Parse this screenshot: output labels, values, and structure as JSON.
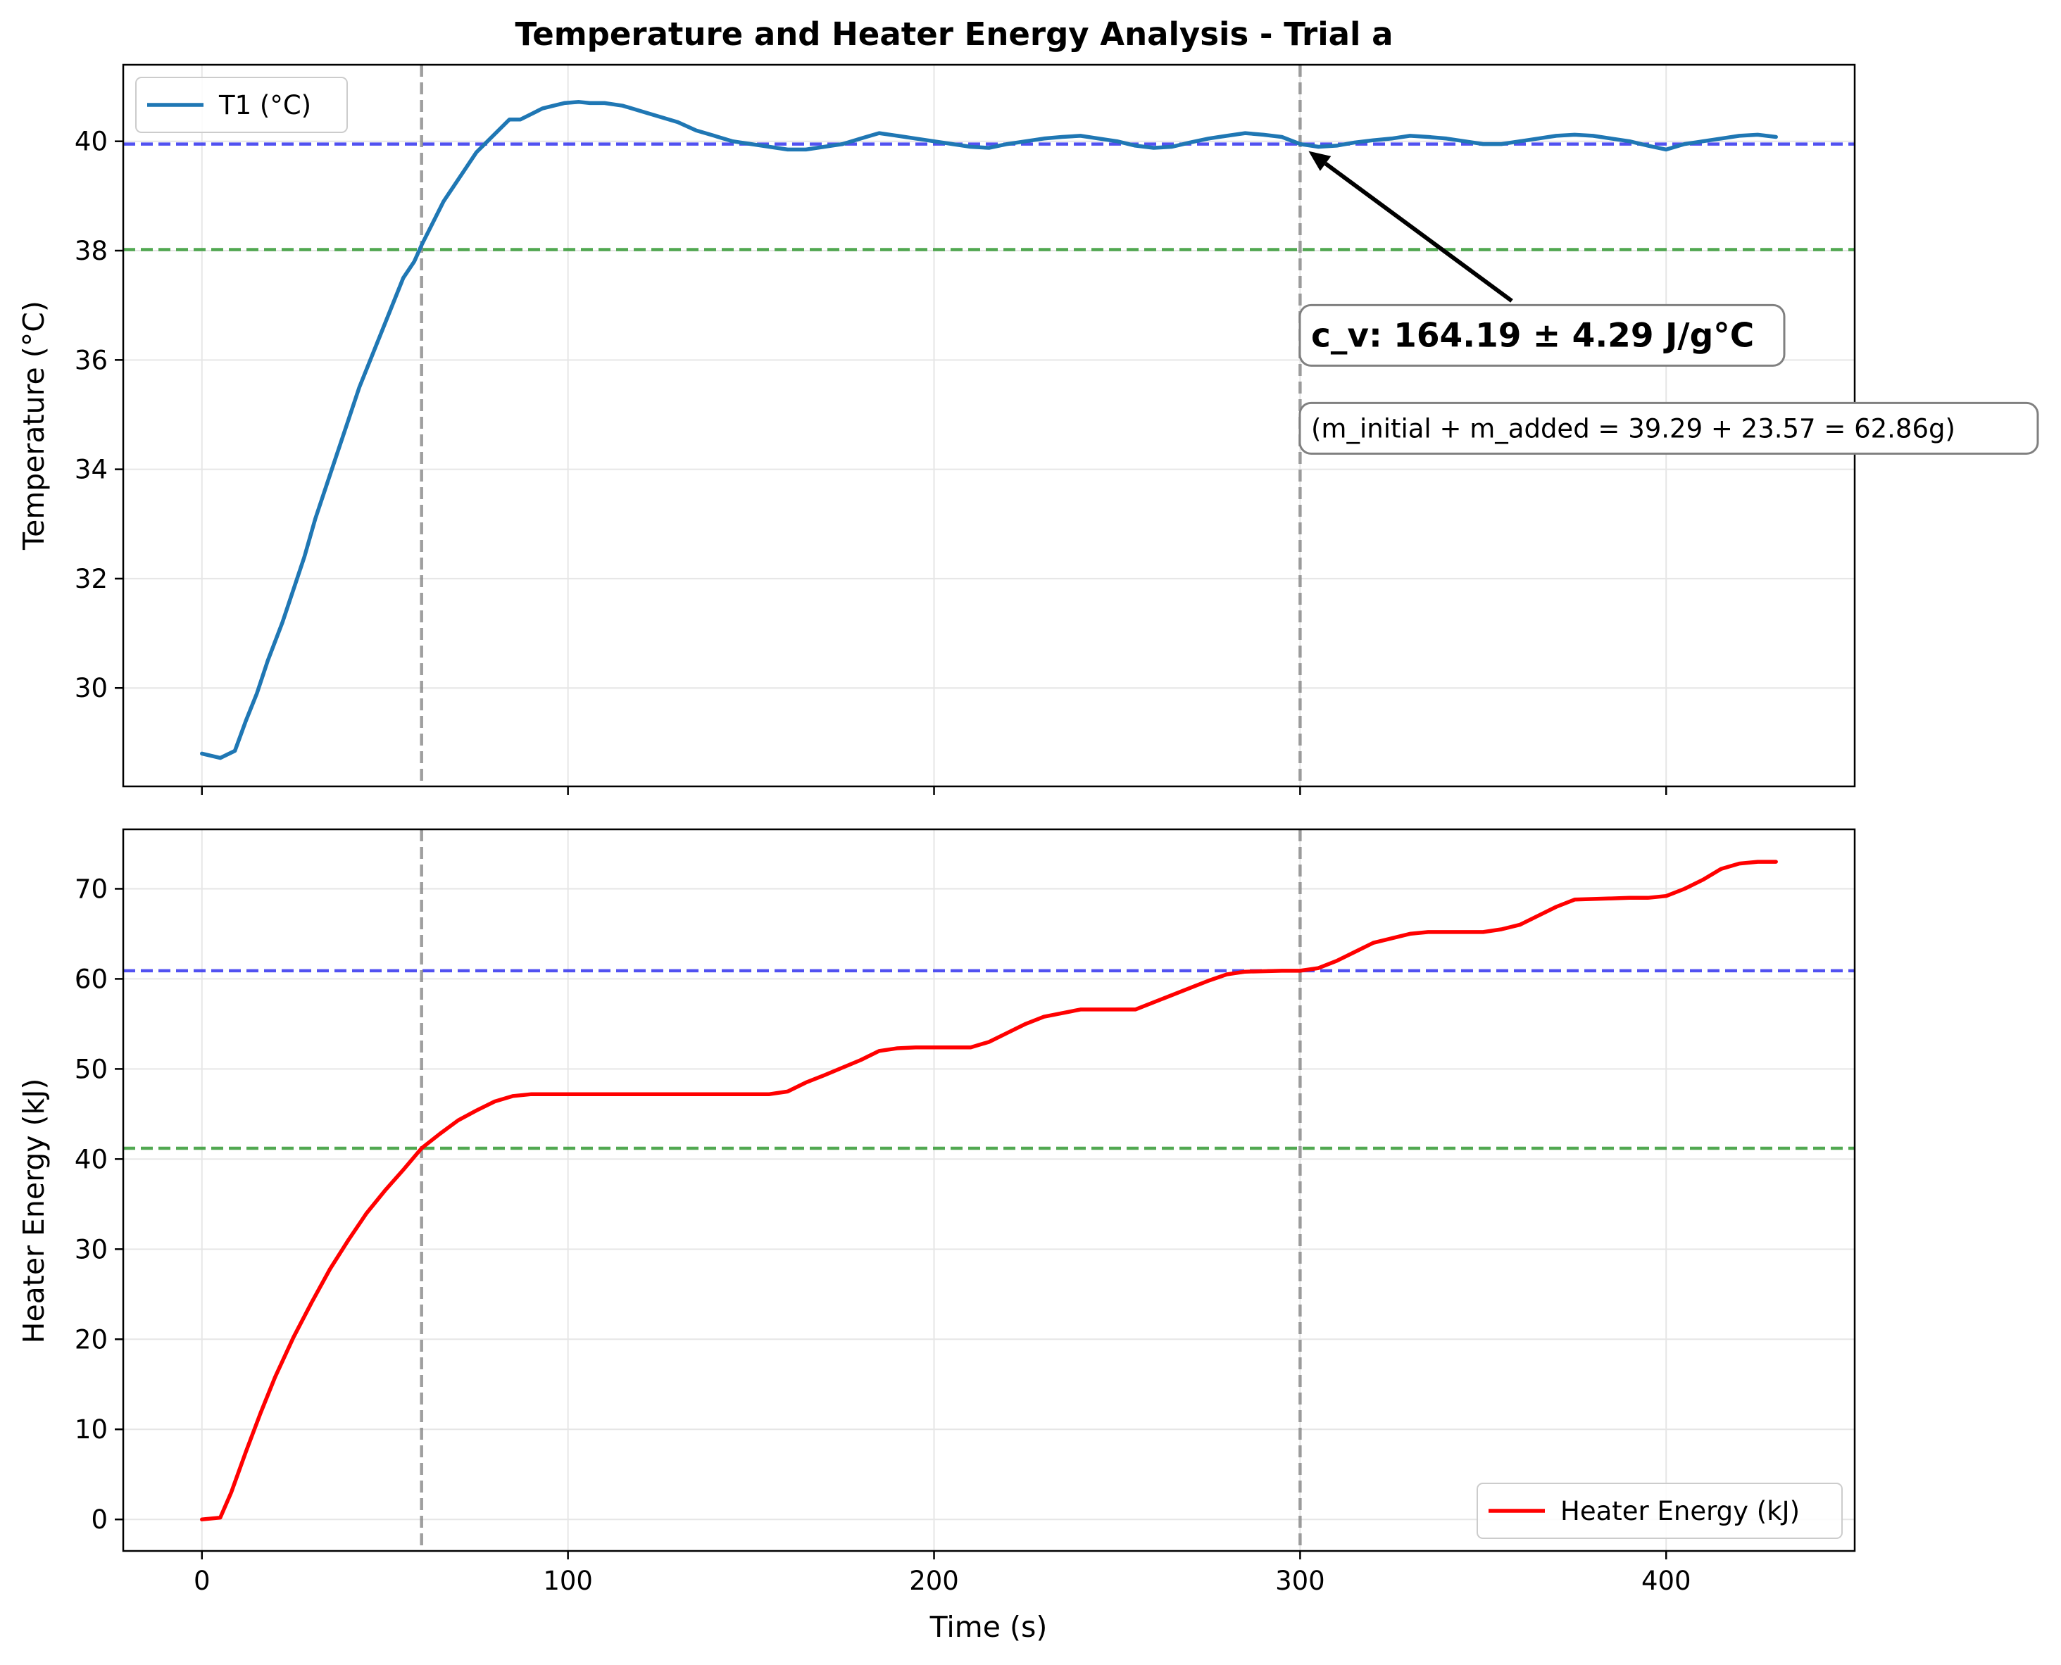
{
  "chart_data": {
    "type": "line",
    "title": "Temperature and Heater Energy Analysis - Trial a",
    "xlabel": "Time (s)",
    "xlim": [
      -21.5,
      451.5
    ],
    "x_ticks": [
      0,
      100,
      200,
      300,
      400
    ],
    "grid": true,
    "vertical_lines": [
      {
        "x": 60,
        "color": "#7f7f7f",
        "style": "dashed"
      },
      {
        "x": 300,
        "color": "#7f7f7f",
        "style": "dashed"
      }
    ],
    "panels": [
      {
        "ylabel": "Temperature (°C)",
        "ylim": [
          28.2,
          41.4
        ],
        "y_ticks": [
          30,
          32,
          34,
          36,
          38,
          40
        ],
        "legend": {
          "placement": "upper-left"
        },
        "horizontal_lines": [
          {
            "y": 39.95,
            "color": "#3333ee",
            "style": "dashed"
          },
          {
            "y": 38.02,
            "color": "#339933",
            "style": "dashed"
          }
        ],
        "series": [
          {
            "name": "T1 (°C)",
            "color": "#1f77b4",
            "x": [
              0,
              5,
              9,
              12,
              15,
              18,
              22,
              25,
              28,
              31,
              34,
              37,
              40,
              43,
              46,
              49,
              52,
              55,
              58,
              60,
              63,
              66,
              69,
              72,
              75,
              78,
              81,
              84,
              87,
              90,
              93,
              96,
              99,
              103,
              106,
              110,
              115,
              120,
              125,
              130,
              135,
              140,
              145,
              150,
              155,
              160,
              165,
              170,
              175,
              180,
              185,
              190,
              195,
              200,
              205,
              210,
              215,
              220,
              225,
              230,
              235,
              240,
              245,
              250,
              255,
              260,
              265,
              270,
              275,
              280,
              285,
              290,
              295,
              300,
              305,
              310,
              315,
              320,
              325,
              330,
              335,
              340,
              345,
              350,
              355,
              360,
              365,
              370,
              375,
              380,
              385,
              390,
              395,
              400,
              405,
              410,
              415,
              420,
              425,
              430
            ],
            "y": [
              28.8,
              28.72,
              28.85,
              29.4,
              29.9,
              30.5,
              31.2,
              31.8,
              32.4,
              33.1,
              33.7,
              34.3,
              34.9,
              35.5,
              36.0,
              36.5,
              37.0,
              37.5,
              37.8,
              38.1,
              38.5,
              38.9,
              39.2,
              39.5,
              39.8,
              40.0,
              40.2,
              40.4,
              40.4,
              40.5,
              40.6,
              40.65,
              40.7,
              40.72,
              40.7,
              40.7,
              40.65,
              40.55,
              40.45,
              40.35,
              40.2,
              40.1,
              40.0,
              39.95,
              39.9,
              39.85,
              39.85,
              39.9,
              39.95,
              40.05,
              40.15,
              40.1,
              40.05,
              40.0,
              39.95,
              39.9,
              39.88,
              39.95,
              40.0,
              40.05,
              40.08,
              40.1,
              40.05,
              40.0,
              39.92,
              39.88,
              39.9,
              39.98,
              40.05,
              40.1,
              40.15,
              40.12,
              40.08,
              39.95,
              39.9,
              39.92,
              39.98,
              40.02,
              40.05,
              40.1,
              40.08,
              40.05,
              40.0,
              39.95,
              39.95,
              40.0,
              40.05,
              40.1,
              40.12,
              40.1,
              40.05,
              40.0,
              39.92,
              39.85,
              39.95,
              40.0,
              40.05,
              40.1,
              40.12,
              40.08
            ]
          }
        ],
        "annotations": [
          {
            "text": "c_v: 164.19 ± 4.29 J/g°C",
            "arrow_to": [
              300,
              39.95
            ],
            "text_pos": [
              303,
              36.45
            ],
            "style": "bold"
          },
          {
            "text": "(m_initial + m_added = 39.29 + 23.57 = 62.86g)",
            "text_pos": [
              303,
              34.75
            ],
            "style": "normal"
          }
        ]
      },
      {
        "ylabel": "Heater Energy (kJ)",
        "ylim": [
          -3.5,
          76.6
        ],
        "y_ticks": [
          0,
          10,
          20,
          30,
          40,
          50,
          60,
          70
        ],
        "legend": {
          "placement": "lower-right"
        },
        "horizontal_lines": [
          {
            "y": 60.9,
            "color": "#3333ee",
            "style": "dashed"
          },
          {
            "y": 41.2,
            "color": "#339933",
            "style": "dashed"
          }
        ],
        "series": [
          {
            "name": "Heater Energy (kJ)",
            "color": "#ff0000",
            "x": [
              0,
              5,
              8,
              12,
              16,
              20,
              25,
              30,
              35,
              40,
              45,
              50,
              55,
              60,
              65,
              70,
              75,
              80,
              85,
              90,
              100,
              120,
              140,
              155,
              160,
              165,
              170,
              180,
              185,
              190,
              195,
              200,
              210,
              215,
              220,
              225,
              230,
              240,
              255,
              260,
              270,
              275,
              280,
              285,
              295,
              300,
              305,
              310,
              315,
              320,
              330,
              335,
              350,
              355,
              360,
              365,
              370,
              375,
              390,
              395,
              400,
              405,
              410,
              415,
              420,
              425,
              430
            ],
            "y": [
              0.0,
              0.2,
              3.0,
              7.5,
              11.8,
              15.8,
              20.2,
              24.1,
              27.8,
              31.0,
              34.0,
              36.5,
              38.8,
              41.2,
              42.8,
              44.3,
              45.4,
              46.4,
              47.0,
              47.2,
              47.2,
              47.2,
              47.2,
              47.2,
              47.5,
              48.5,
              49.3,
              51.0,
              52.0,
              52.3,
              52.4,
              52.4,
              52.4,
              53.0,
              54.0,
              55.0,
              55.8,
              56.6,
              56.6,
              57.4,
              59.0,
              59.8,
              60.5,
              60.8,
              60.9,
              60.9,
              61.2,
              62.0,
              63.0,
              64.0,
              65.0,
              65.2,
              65.2,
              65.5,
              66.0,
              67.0,
              68.0,
              68.8,
              69.0,
              69.0,
              69.2,
              70.0,
              71.0,
              72.2,
              72.8,
              73.0,
              73.0
            ]
          }
        ],
        "annotations": []
      }
    ]
  }
}
